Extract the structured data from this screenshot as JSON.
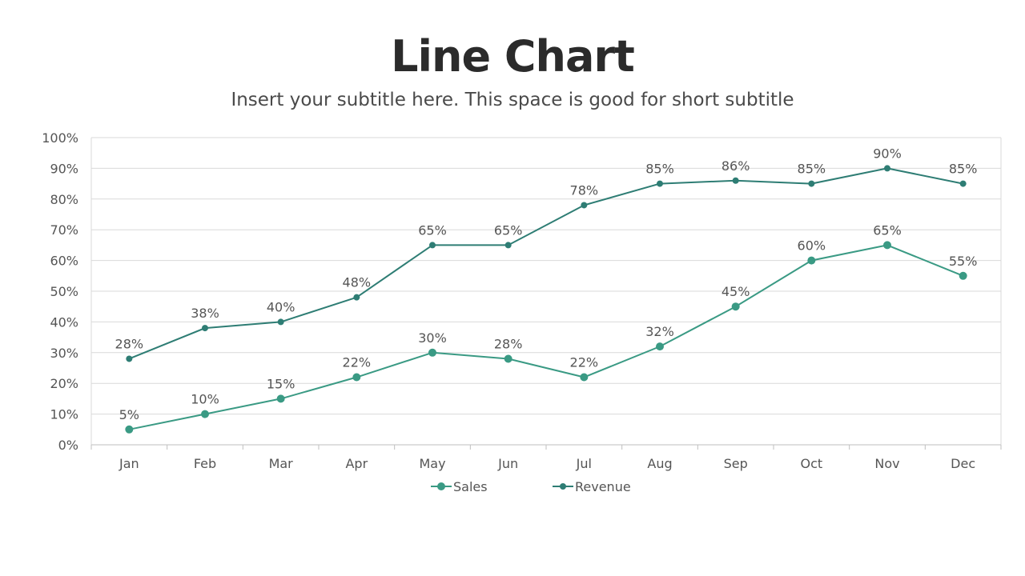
{
  "header": {
    "title": "Line Chart",
    "subtitle": "Insert your subtitle here. This space is good for short subtitle"
  },
  "chart_data": {
    "type": "line",
    "categories": [
      "Jan",
      "Feb",
      "Mar",
      "Apr",
      "May",
      "Jun",
      "Jul",
      "Aug",
      "Sep",
      "Oct",
      "Nov",
      "Dec"
    ],
    "series": [
      {
        "name": "Sales",
        "color": "#3a9a84",
        "values": [
          5,
          10,
          15,
          22,
          30,
          28,
          22,
          32,
          45,
          60,
          65,
          55
        ],
        "labels": [
          "5%",
          "10%",
          "15%",
          "22%",
          "30%",
          "28%",
          "22%",
          "32%",
          "45%",
          "60%",
          "65%",
          "55%"
        ]
      },
      {
        "name": "Revenue",
        "color": "#2e7d74",
        "values": [
          28,
          38,
          40,
          48,
          65,
          65,
          78,
          85,
          86,
          85,
          90,
          85
        ],
        "labels": [
          "28%",
          "38%",
          "40%",
          "48%",
          "65%",
          "65%",
          "78%",
          "85%",
          "86%",
          "85%",
          "90%",
          "85%"
        ]
      }
    ],
    "ylim": [
      0,
      100
    ],
    "yticks": [
      0,
      10,
      20,
      30,
      40,
      50,
      60,
      70,
      80,
      90,
      100
    ],
    "ytick_labels": [
      "0%",
      "10%",
      "20%",
      "30%",
      "40%",
      "50%",
      "60%",
      "70%",
      "80%",
      "90%",
      "100%"
    ],
    "grid": true,
    "legend_position": "bottom"
  }
}
